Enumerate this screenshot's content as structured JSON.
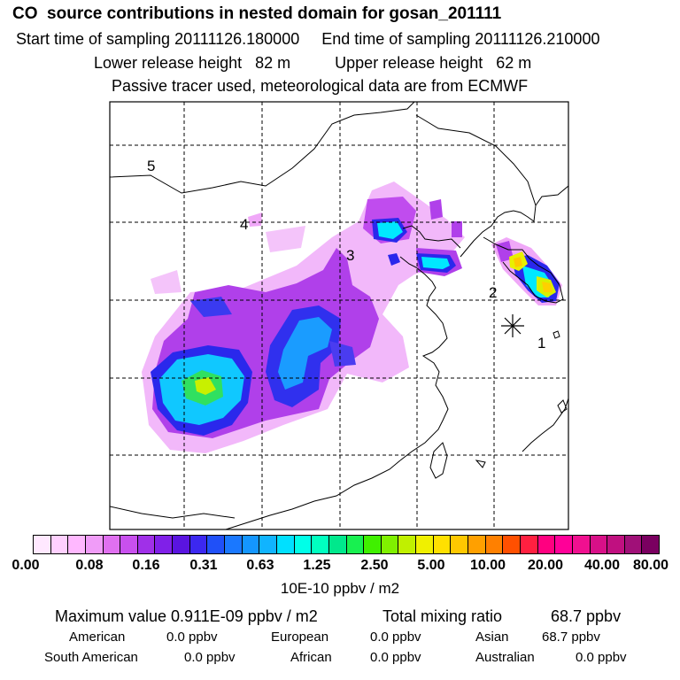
{
  "header": {
    "title": "CO  source contributions in nested domain for gosan_201111",
    "start_label": "Start time of sampling 20111126.180000",
    "end_label": "End time of sampling 20111126.210000",
    "lower_label": "Lower release height   82 m",
    "upper_label": "Upper release height   62 m",
    "note": "Passive tracer used, meteorological data are from ECMWF"
  },
  "map": {
    "regions": [
      {
        "id": "1",
        "label": "1"
      },
      {
        "id": "2",
        "label": "2"
      },
      {
        "id": "3",
        "label": "3"
      },
      {
        "id": "4",
        "label": "4"
      },
      {
        "id": "5",
        "label": "5"
      }
    ],
    "receptor_marker": "asterisk-icon"
  },
  "colorbar": {
    "colors": [
      "#ffe8ff",
      "#ffd0ff",
      "#ffb8ff",
      "#f09cf8",
      "#e070f0",
      "#c850ee",
      "#a030e8",
      "#8020e8",
      "#5a14e0",
      "#3c28f0",
      "#2050f8",
      "#1a78ff",
      "#1496ff",
      "#10b4ff",
      "#00e0ff",
      "#00ffe8",
      "#00ffc0",
      "#00e88c",
      "#18f050",
      "#40f000",
      "#80f000",
      "#c0f000",
      "#f0f000",
      "#ffe000",
      "#ffc800",
      "#ffa000",
      "#ff8000",
      "#ff5000",
      "#ff2040",
      "#ff0080",
      "#ff0098",
      "#f01090",
      "#d81088",
      "#c01080",
      "#a01078",
      "#7a0060"
    ],
    "ticks": [
      "0.00",
      "0.08",
      "0.16",
      "0.31",
      "0.63",
      "1.25",
      "2.50",
      "5.00",
      "10.00",
      "20.00",
      "40.00",
      "80.00"
    ],
    "unit": "10E-10 ppbv / m2"
  },
  "stats": {
    "max_label": "Maximum value  0.911E-09 ppbv / m2",
    "total_label": "Total mixing ratio",
    "total_value": "68.7 ppbv",
    "american_label": "American",
    "american_value": "0.0 ppbv",
    "european_label": "European",
    "european_value": "0.0 ppbv",
    "asian_label": "Asian",
    "asian_value": "68.7 ppbv",
    "south_american_label": "South American",
    "south_american_value": "0.0 ppbv",
    "african_label": "African",
    "african_value": "0.0 ppbv",
    "australian_label": "Australian",
    "australian_value": "0.0 ppbv"
  }
}
